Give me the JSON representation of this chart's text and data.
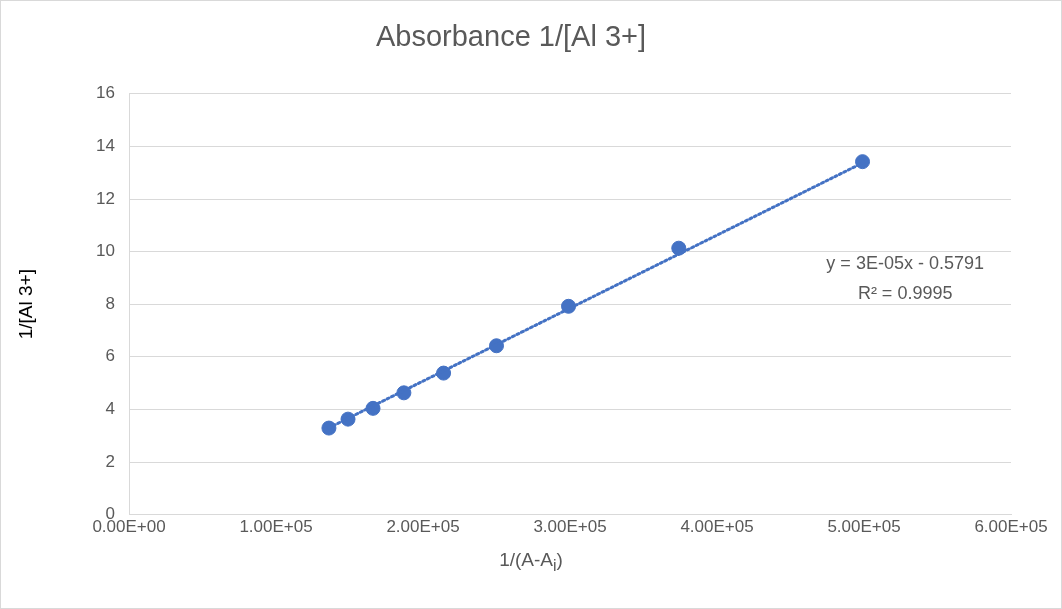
{
  "chart_data": {
    "type": "scatter",
    "title": "Absorbance 1/[Al 3+]",
    "xlabel": "1/(A-A$_{i}$)",
    "ylabel": "1/[Al 3+]",
    "series": [
      {
        "color": "#4472c4",
        "x": [
          136000,
          149000,
          166000,
          187000,
          214000,
          250000,
          299000,
          374000,
          499000
        ],
        "values": [
          3.29,
          3.63,
          4.04,
          4.63,
          5.38,
          6.42,
          7.92,
          10.13,
          13.42
        ],
        "marker": "circle"
      },
      {
        "type": "line",
        "color": "#4472c4",
        "x": [
          136000,
          500000
        ],
        "values": [
          3.3,
          13.4
        ],
        "marker": "none",
        "line_style": "dotted"
      }
    ],
    "xlim": [
      0,
      600000
    ],
    "xticks": [
      {
        "value": 0,
        "label": "0.00E+00"
      },
      {
        "value": 100000,
        "label": "1.00E+05"
      },
      {
        "value": 200000,
        "label": "2.00E+05"
      },
      {
        "value": 300000,
        "label": "3.00E+05"
      },
      {
        "value": 400000,
        "label": "4.00E+05"
      },
      {
        "value": 500000,
        "label": "5.00E+05"
      },
      {
        "value": 600000,
        "label": "6.00E+05"
      }
    ],
    "ylim": [
      0,
      16
    ],
    "yticks": [
      0,
      2,
      4,
      6,
      8,
      10,
      12,
      14,
      16
    ],
    "annotations": [
      "y = 3E-05x - 0.5791",
      "R² = 0.9995"
    ],
    "grid": "y",
    "legend": false
  }
}
